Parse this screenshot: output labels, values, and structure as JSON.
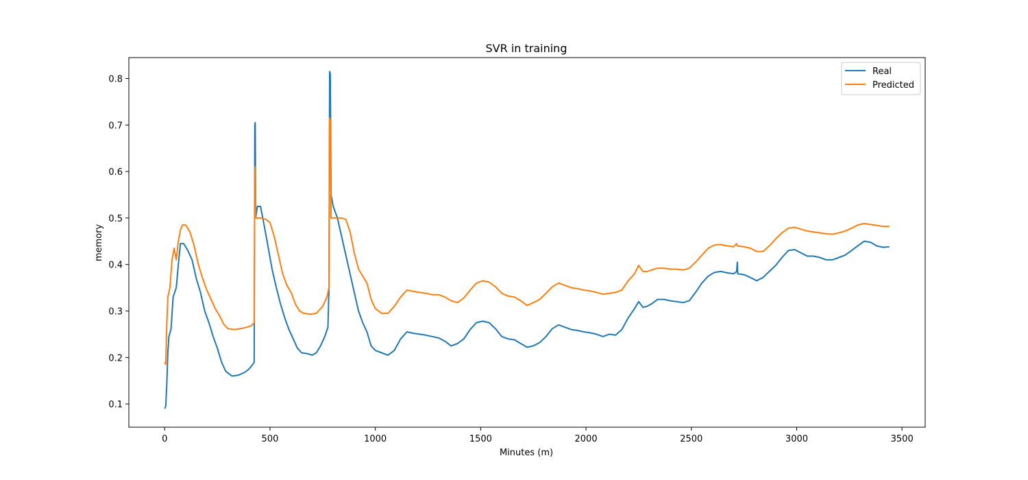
{
  "chart_data": {
    "type": "line",
    "title": "SVR in training",
    "xlabel": "Minutes (m)",
    "ylabel": "memory",
    "xlim": [
      -170,
      3610
    ],
    "ylim": [
      0.05,
      0.845
    ],
    "xticks": [
      0,
      500,
      1000,
      1500,
      2000,
      2500,
      3000,
      3500
    ],
    "yticks": [
      0.1,
      0.2,
      0.3,
      0.4,
      0.5,
      0.6,
      0.7,
      0.8
    ],
    "grid": false,
    "legend_position": "top-right",
    "series": [
      {
        "name": "Real",
        "color": "#1f77b4",
        "points": [
          [
            0,
            0.09
          ],
          [
            5,
            0.095
          ],
          [
            10,
            0.14
          ],
          [
            15,
            0.21
          ],
          [
            20,
            0.245
          ],
          [
            30,
            0.26
          ],
          [
            40,
            0.33
          ],
          [
            55,
            0.35
          ],
          [
            65,
            0.4
          ],
          [
            75,
            0.445
          ],
          [
            90,
            0.445
          ],
          [
            110,
            0.43
          ],
          [
            130,
            0.41
          ],
          [
            150,
            0.37
          ],
          [
            170,
            0.34
          ],
          [
            190,
            0.3
          ],
          [
            210,
            0.275
          ],
          [
            230,
            0.245
          ],
          [
            250,
            0.22
          ],
          [
            270,
            0.19
          ],
          [
            290,
            0.17
          ],
          [
            320,
            0.16
          ],
          [
            350,
            0.162
          ],
          [
            380,
            0.168
          ],
          [
            400,
            0.175
          ],
          [
            418,
            0.185
          ],
          [
            425,
            0.19
          ],
          [
            428,
            0.7
          ],
          [
            430,
            0.705
          ],
          [
            432,
            0.5
          ],
          [
            440,
            0.525
          ],
          [
            455,
            0.525
          ],
          [
            470,
            0.49
          ],
          [
            490,
            0.44
          ],
          [
            510,
            0.39
          ],
          [
            530,
            0.35
          ],
          [
            550,
            0.315
          ],
          [
            570,
            0.285
          ],
          [
            590,
            0.26
          ],
          [
            610,
            0.24
          ],
          [
            630,
            0.22
          ],
          [
            650,
            0.21
          ],
          [
            680,
            0.208
          ],
          [
            700,
            0.205
          ],
          [
            720,
            0.21
          ],
          [
            740,
            0.225
          ],
          [
            760,
            0.245
          ],
          [
            775,
            0.265
          ],
          [
            780,
            0.35
          ],
          [
            783,
            0.815
          ],
          [
            786,
            0.81
          ],
          [
            790,
            0.55
          ],
          [
            800,
            0.525
          ],
          [
            820,
            0.5
          ],
          [
            840,
            0.46
          ],
          [
            860,
            0.42
          ],
          [
            880,
            0.38
          ],
          [
            900,
            0.34
          ],
          [
            920,
            0.3
          ],
          [
            940,
            0.275
          ],
          [
            960,
            0.255
          ],
          [
            980,
            0.225
          ],
          [
            1000,
            0.215
          ],
          [
            1030,
            0.21
          ],
          [
            1060,
            0.205
          ],
          [
            1090,
            0.215
          ],
          [
            1120,
            0.24
          ],
          [
            1150,
            0.255
          ],
          [
            1180,
            0.252
          ],
          [
            1210,
            0.25
          ],
          [
            1240,
            0.248
          ],
          [
            1270,
            0.245
          ],
          [
            1300,
            0.242
          ],
          [
            1330,
            0.235
          ],
          [
            1360,
            0.225
          ],
          [
            1390,
            0.23
          ],
          [
            1420,
            0.24
          ],
          [
            1450,
            0.26
          ],
          [
            1480,
            0.275
          ],
          [
            1510,
            0.278
          ],
          [
            1540,
            0.275
          ],
          [
            1570,
            0.262
          ],
          [
            1600,
            0.245
          ],
          [
            1630,
            0.24
          ],
          [
            1660,
            0.238
          ],
          [
            1690,
            0.23
          ],
          [
            1720,
            0.222
          ],
          [
            1750,
            0.225
          ],
          [
            1780,
            0.232
          ],
          [
            1810,
            0.245
          ],
          [
            1840,
            0.262
          ],
          [
            1870,
            0.27
          ],
          [
            1900,
            0.265
          ],
          [
            1930,
            0.26
          ],
          [
            1960,
            0.258
          ],
          [
            1990,
            0.255
          ],
          [
            2020,
            0.253
          ],
          [
            2050,
            0.25
          ],
          [
            2080,
            0.245
          ],
          [
            2110,
            0.25
          ],
          [
            2140,
            0.248
          ],
          [
            2170,
            0.26
          ],
          [
            2200,
            0.285
          ],
          [
            2230,
            0.305
          ],
          [
            2250,
            0.32
          ],
          [
            2270,
            0.308
          ],
          [
            2290,
            0.31
          ],
          [
            2310,
            0.315
          ],
          [
            2340,
            0.325
          ],
          [
            2370,
            0.325
          ],
          [
            2400,
            0.322
          ],
          [
            2430,
            0.32
          ],
          [
            2460,
            0.318
          ],
          [
            2490,
            0.322
          ],
          [
            2520,
            0.34
          ],
          [
            2550,
            0.36
          ],
          [
            2580,
            0.375
          ],
          [
            2610,
            0.383
          ],
          [
            2640,
            0.385
          ],
          [
            2670,
            0.382
          ],
          [
            2700,
            0.38
          ],
          [
            2715,
            0.385
          ],
          [
            2718,
            0.405
          ],
          [
            2720,
            0.38
          ],
          [
            2750,
            0.378
          ],
          [
            2780,
            0.372
          ],
          [
            2810,
            0.365
          ],
          [
            2840,
            0.372
          ],
          [
            2870,
            0.385
          ],
          [
            2900,
            0.398
          ],
          [
            2930,
            0.415
          ],
          [
            2960,
            0.43
          ],
          [
            2990,
            0.432
          ],
          [
            3020,
            0.425
          ],
          [
            3050,
            0.418
          ],
          [
            3080,
            0.418
          ],
          [
            3110,
            0.415
          ],
          [
            3140,
            0.41
          ],
          [
            3170,
            0.41
          ],
          [
            3200,
            0.415
          ],
          [
            3230,
            0.42
          ],
          [
            3260,
            0.43
          ],
          [
            3290,
            0.44
          ],
          [
            3320,
            0.45
          ],
          [
            3350,
            0.448
          ],
          [
            3380,
            0.44
          ],
          [
            3410,
            0.437
          ],
          [
            3440,
            0.438
          ]
        ]
      },
      {
        "name": "Predicted",
        "color": "#ff7f0e",
        "points": [
          [
            0,
            0.19
          ],
          [
            5,
            0.185
          ],
          [
            10,
            0.27
          ],
          [
            15,
            0.33
          ],
          [
            25,
            0.35
          ],
          [
            35,
            0.41
          ],
          [
            45,
            0.435
          ],
          [
            55,
            0.41
          ],
          [
            65,
            0.45
          ],
          [
            75,
            0.475
          ],
          [
            85,
            0.485
          ],
          [
            100,
            0.485
          ],
          [
            120,
            0.47
          ],
          [
            140,
            0.44
          ],
          [
            160,
            0.4
          ],
          [
            180,
            0.37
          ],
          [
            200,
            0.345
          ],
          [
            220,
            0.325
          ],
          [
            240,
            0.305
          ],
          [
            260,
            0.29
          ],
          [
            280,
            0.272
          ],
          [
            300,
            0.262
          ],
          [
            330,
            0.26
          ],
          [
            360,
            0.262
          ],
          [
            390,
            0.265
          ],
          [
            410,
            0.268
          ],
          [
            425,
            0.275
          ],
          [
            428,
            0.6
          ],
          [
            430,
            0.61
          ],
          [
            432,
            0.5
          ],
          [
            460,
            0.5
          ],
          [
            480,
            0.497
          ],
          [
            500,
            0.49
          ],
          [
            520,
            0.46
          ],
          [
            540,
            0.42
          ],
          [
            560,
            0.38
          ],
          [
            580,
            0.355
          ],
          [
            600,
            0.34
          ],
          [
            620,
            0.315
          ],
          [
            640,
            0.3
          ],
          [
            660,
            0.295
          ],
          [
            690,
            0.293
          ],
          [
            720,
            0.295
          ],
          [
            750,
            0.31
          ],
          [
            770,
            0.33
          ],
          [
            780,
            0.35
          ],
          [
            783,
            0.715
          ],
          [
            786,
            0.71
          ],
          [
            790,
            0.5
          ],
          [
            820,
            0.5
          ],
          [
            840,
            0.5
          ],
          [
            860,
            0.497
          ],
          [
            880,
            0.47
          ],
          [
            900,
            0.425
          ],
          [
            920,
            0.39
          ],
          [
            940,
            0.375
          ],
          [
            960,
            0.36
          ],
          [
            980,
            0.325
          ],
          [
            1000,
            0.305
          ],
          [
            1030,
            0.295
          ],
          [
            1060,
            0.295
          ],
          [
            1090,
            0.31
          ],
          [
            1120,
            0.33
          ],
          [
            1150,
            0.345
          ],
          [
            1180,
            0.342
          ],
          [
            1210,
            0.34
          ],
          [
            1240,
            0.338
          ],
          [
            1270,
            0.335
          ],
          [
            1300,
            0.335
          ],
          [
            1330,
            0.33
          ],
          [
            1360,
            0.322
          ],
          [
            1390,
            0.318
          ],
          [
            1420,
            0.328
          ],
          [
            1450,
            0.345
          ],
          [
            1480,
            0.36
          ],
          [
            1510,
            0.365
          ],
          [
            1540,
            0.362
          ],
          [
            1570,
            0.352
          ],
          [
            1600,
            0.338
          ],
          [
            1630,
            0.332
          ],
          [
            1660,
            0.33
          ],
          [
            1690,
            0.322
          ],
          [
            1720,
            0.312
          ],
          [
            1750,
            0.318
          ],
          [
            1780,
            0.325
          ],
          [
            1810,
            0.338
          ],
          [
            1840,
            0.352
          ],
          [
            1870,
            0.36
          ],
          [
            1900,
            0.355
          ],
          [
            1930,
            0.35
          ],
          [
            1960,
            0.348
          ],
          [
            1990,
            0.345
          ],
          [
            2020,
            0.343
          ],
          [
            2050,
            0.34
          ],
          [
            2080,
            0.336
          ],
          [
            2110,
            0.338
          ],
          [
            2140,
            0.34
          ],
          [
            2170,
            0.345
          ],
          [
            2200,
            0.365
          ],
          [
            2230,
            0.38
          ],
          [
            2250,
            0.398
          ],
          [
            2270,
            0.385
          ],
          [
            2290,
            0.385
          ],
          [
            2310,
            0.388
          ],
          [
            2340,
            0.392
          ],
          [
            2370,
            0.392
          ],
          [
            2400,
            0.39
          ],
          [
            2430,
            0.39
          ],
          [
            2460,
            0.388
          ],
          [
            2490,
            0.392
          ],
          [
            2520,
            0.405
          ],
          [
            2550,
            0.42
          ],
          [
            2580,
            0.435
          ],
          [
            2610,
            0.442
          ],
          [
            2640,
            0.443
          ],
          [
            2670,
            0.44
          ],
          [
            2700,
            0.438
          ],
          [
            2715,
            0.445
          ],
          [
            2718,
            0.44
          ],
          [
            2750,
            0.438
          ],
          [
            2780,
            0.435
          ],
          [
            2810,
            0.428
          ],
          [
            2840,
            0.428
          ],
          [
            2870,
            0.44
          ],
          [
            2900,
            0.455
          ],
          [
            2930,
            0.468
          ],
          [
            2960,
            0.478
          ],
          [
            2990,
            0.48
          ],
          [
            3020,
            0.476
          ],
          [
            3050,
            0.472
          ],
          [
            3080,
            0.47
          ],
          [
            3110,
            0.468
          ],
          [
            3140,
            0.466
          ],
          [
            3170,
            0.465
          ],
          [
            3200,
            0.468
          ],
          [
            3230,
            0.472
          ],
          [
            3260,
            0.478
          ],
          [
            3290,
            0.485
          ],
          [
            3320,
            0.488
          ],
          [
            3350,
            0.486
          ],
          [
            3380,
            0.484
          ],
          [
            3410,
            0.482
          ],
          [
            3440,
            0.482
          ]
        ]
      }
    ]
  }
}
